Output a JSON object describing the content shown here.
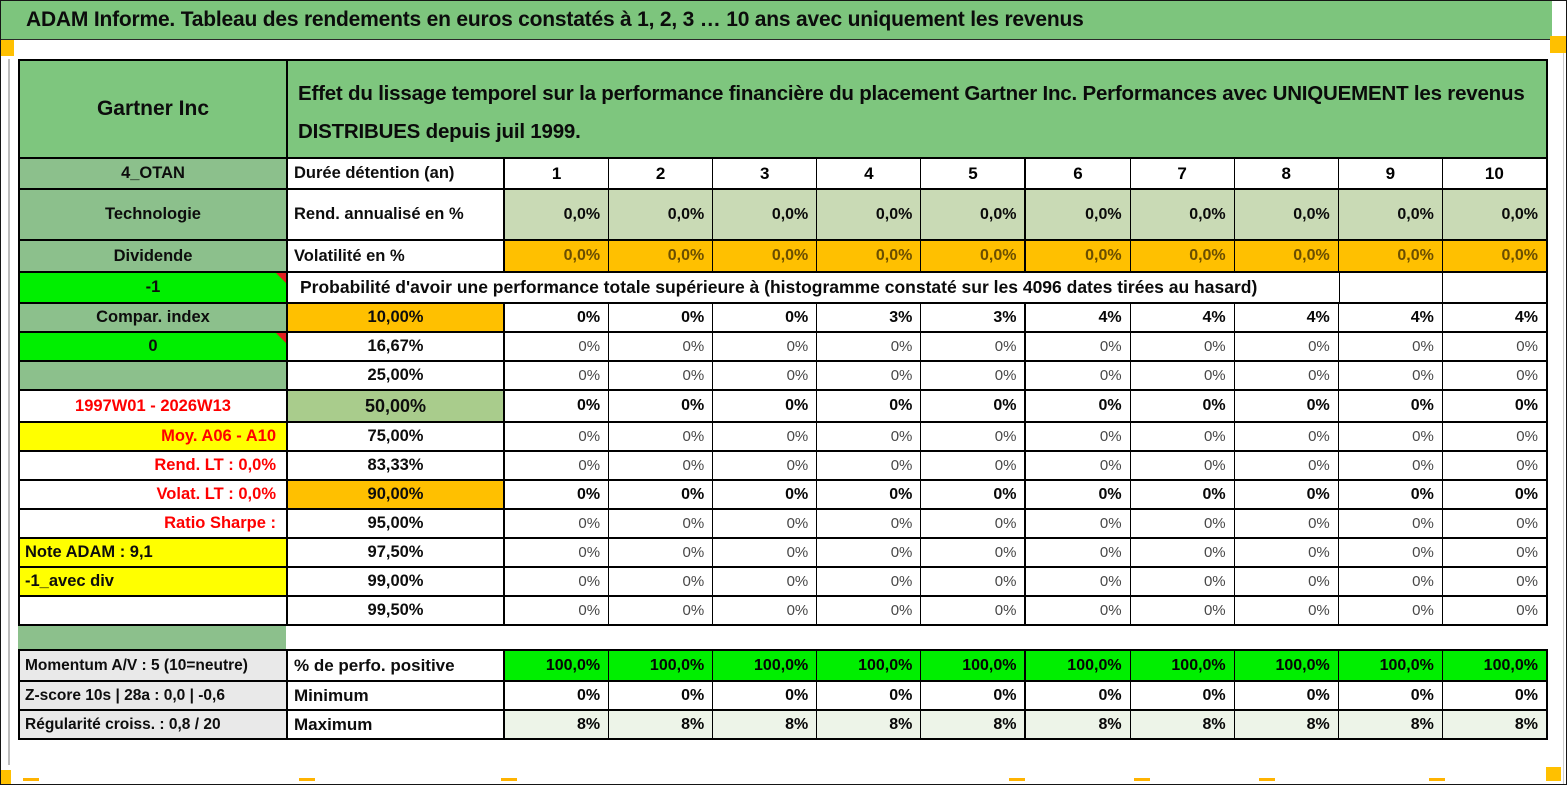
{
  "title": "ADAM Informe. Tableau des rendements en euros constatés à 1, 2, 3 … 10 ans avec uniquement les revenus",
  "header": {
    "name": "Gartner Inc",
    "description_line1": "Effet du lissage temporel sur la performance financière du placement Gartner Inc. Performances avec UNIQUEMENT les revenus",
    "description_line2": "DISTRIBUES depuis juil 1999."
  },
  "columns": {
    "label_a": "4_OTAN",
    "label_b": "Durée détention (an)",
    "years": [
      "1",
      "2",
      "3",
      "4",
      "5",
      "6",
      "7",
      "8",
      "9",
      "10"
    ]
  },
  "rows": {
    "rend": {
      "a": "Technologie",
      "b": "Rend. annualisé en %",
      "values": [
        "0,0%",
        "0,0%",
        "0,0%",
        "0,0%",
        "0,0%",
        "0,0%",
        "0,0%",
        "0,0%",
        "0,0%",
        "0,0%"
      ]
    },
    "volat": {
      "a": "Dividende",
      "b": "Volatilité en %",
      "values": [
        "0,0%",
        "0,0%",
        "0,0%",
        "0,0%",
        "0,0%",
        "0,0%",
        "0,0%",
        "0,0%",
        "0,0%",
        "0,0%"
      ]
    },
    "proba": {
      "a": "-1",
      "text": "Probabilité d'avoir une performance totale supérieure à (histogramme constaté sur les 4096 dates tirées au hasard)"
    },
    "p10": {
      "a": "Compar. index",
      "b": "10,00%",
      "values": [
        "0%",
        "0%",
        "0%",
        "3%",
        "3%",
        "4%",
        "4%",
        "4%",
        "4%",
        "4%"
      ]
    },
    "p1667": {
      "a": "0",
      "b": "16,67%",
      "values": [
        "0%",
        "0%",
        "0%",
        "0%",
        "0%",
        "0%",
        "0%",
        "0%",
        "0%",
        "0%"
      ]
    },
    "p25": {
      "a": "",
      "b": "25,00%",
      "values": [
        "0%",
        "0%",
        "0%",
        "0%",
        "0%",
        "0%",
        "0%",
        "0%",
        "0%",
        "0%"
      ]
    },
    "p50": {
      "a": "1997W01 - 2026W13",
      "b": "50,00%",
      "values": [
        "0%",
        "0%",
        "0%",
        "0%",
        "0%",
        "0%",
        "0%",
        "0%",
        "0%",
        "0%"
      ]
    },
    "p75": {
      "a": "Moy. A06 - A10",
      "b": "75,00%",
      "values": [
        "0%",
        "0%",
        "0%",
        "0%",
        "0%",
        "0%",
        "0%",
        "0%",
        "0%",
        "0%"
      ]
    },
    "p8333": {
      "a": "Rend. LT :   0,0%",
      "b": "83,33%",
      "values": [
        "0%",
        "0%",
        "0%",
        "0%",
        "0%",
        "0%",
        "0%",
        "0%",
        "0%",
        "0%"
      ]
    },
    "p90": {
      "a": "Volat. LT :   0,0%",
      "b": "90,00%",
      "values": [
        "0%",
        "0%",
        "0%",
        "0%",
        "0%",
        "0%",
        "0%",
        "0%",
        "0%",
        "0%"
      ]
    },
    "p95": {
      "a": "Ratio Sharpe :",
      "b": "95,00%",
      "values": [
        "0%",
        "0%",
        "0%",
        "0%",
        "0%",
        "0%",
        "0%",
        "0%",
        "0%",
        "0%"
      ]
    },
    "p975": {
      "a": "Note ADAM : 9,1",
      "b": "97,50%",
      "values": [
        "0%",
        "0%",
        "0%",
        "0%",
        "0%",
        "0%",
        "0%",
        "0%",
        "0%",
        "0%"
      ]
    },
    "p99": {
      "a": "-1_avec div",
      "b": "99,00%",
      "values": [
        "0%",
        "0%",
        "0%",
        "0%",
        "0%",
        "0%",
        "0%",
        "0%",
        "0%",
        "0%"
      ]
    },
    "p995": {
      "a": "",
      "b": "99,50%",
      "values": [
        "0%",
        "0%",
        "0%",
        "0%",
        "0%",
        "0%",
        "0%",
        "0%",
        "0%",
        "0%"
      ]
    },
    "perfo": {
      "a": "Momentum A/V : 5 (10=neutre)",
      "b": "% de perfo. positive",
      "values": [
        "100,0%",
        "100,0%",
        "100,0%",
        "100,0%",
        "100,0%",
        "100,0%",
        "100,0%",
        "100,0%",
        "100,0%",
        "100,0%"
      ]
    },
    "min": {
      "a": "Z-score 10s | 28a : 0,0 | -0,6",
      "b": "Minimum",
      "values": [
        "0%",
        "0%",
        "0%",
        "0%",
        "0%",
        "0%",
        "0%",
        "0%",
        "0%",
        "0%"
      ]
    },
    "max": {
      "a": "Régularité croiss. : 0,8 / 20",
      "b": "Maximum",
      "values": [
        "8%",
        "8%",
        "8%",
        "8%",
        "8%",
        "8%",
        "8%",
        "8%",
        "8%",
        "8%"
      ]
    }
  },
  "colors": {
    "title_green": "#7dc57d",
    "label_green": "#8cc08c",
    "bright_green": "#00ef00",
    "light_green_row": "#c9dab5",
    "median_green": "#a9cc8c",
    "pale_green_row": "#edf4e8",
    "orange": "#ffc000",
    "orange_text": "#6b4e00",
    "yellow": "#ffff00",
    "gray_label": "#e9e9e9",
    "red_text": "#fe0000",
    "marker_orange": "#ffb300"
  }
}
